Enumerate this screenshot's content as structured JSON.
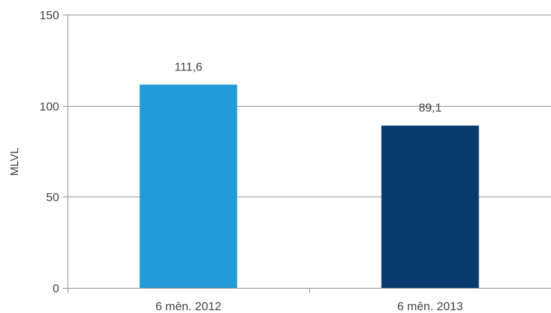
{
  "chart_data": {
    "type": "bar",
    "categories": [
      "6 mēn. 2012",
      "6 mēn. 2013"
    ],
    "values": [
      111.6,
      89.1
    ],
    "data_labels": [
      "111,6",
      "89,1"
    ],
    "bar_colors": [
      "#239bd8",
      "#0a3b6e"
    ],
    "title": "",
    "xlabel": "",
    "ylabel": "MLVL",
    "ylim": [
      0,
      150
    ],
    "yticks": [
      0,
      50,
      100,
      150
    ],
    "ytick_labels": [
      "0",
      "50",
      "100",
      "150"
    ],
    "grid": true,
    "legend": "none"
  }
}
